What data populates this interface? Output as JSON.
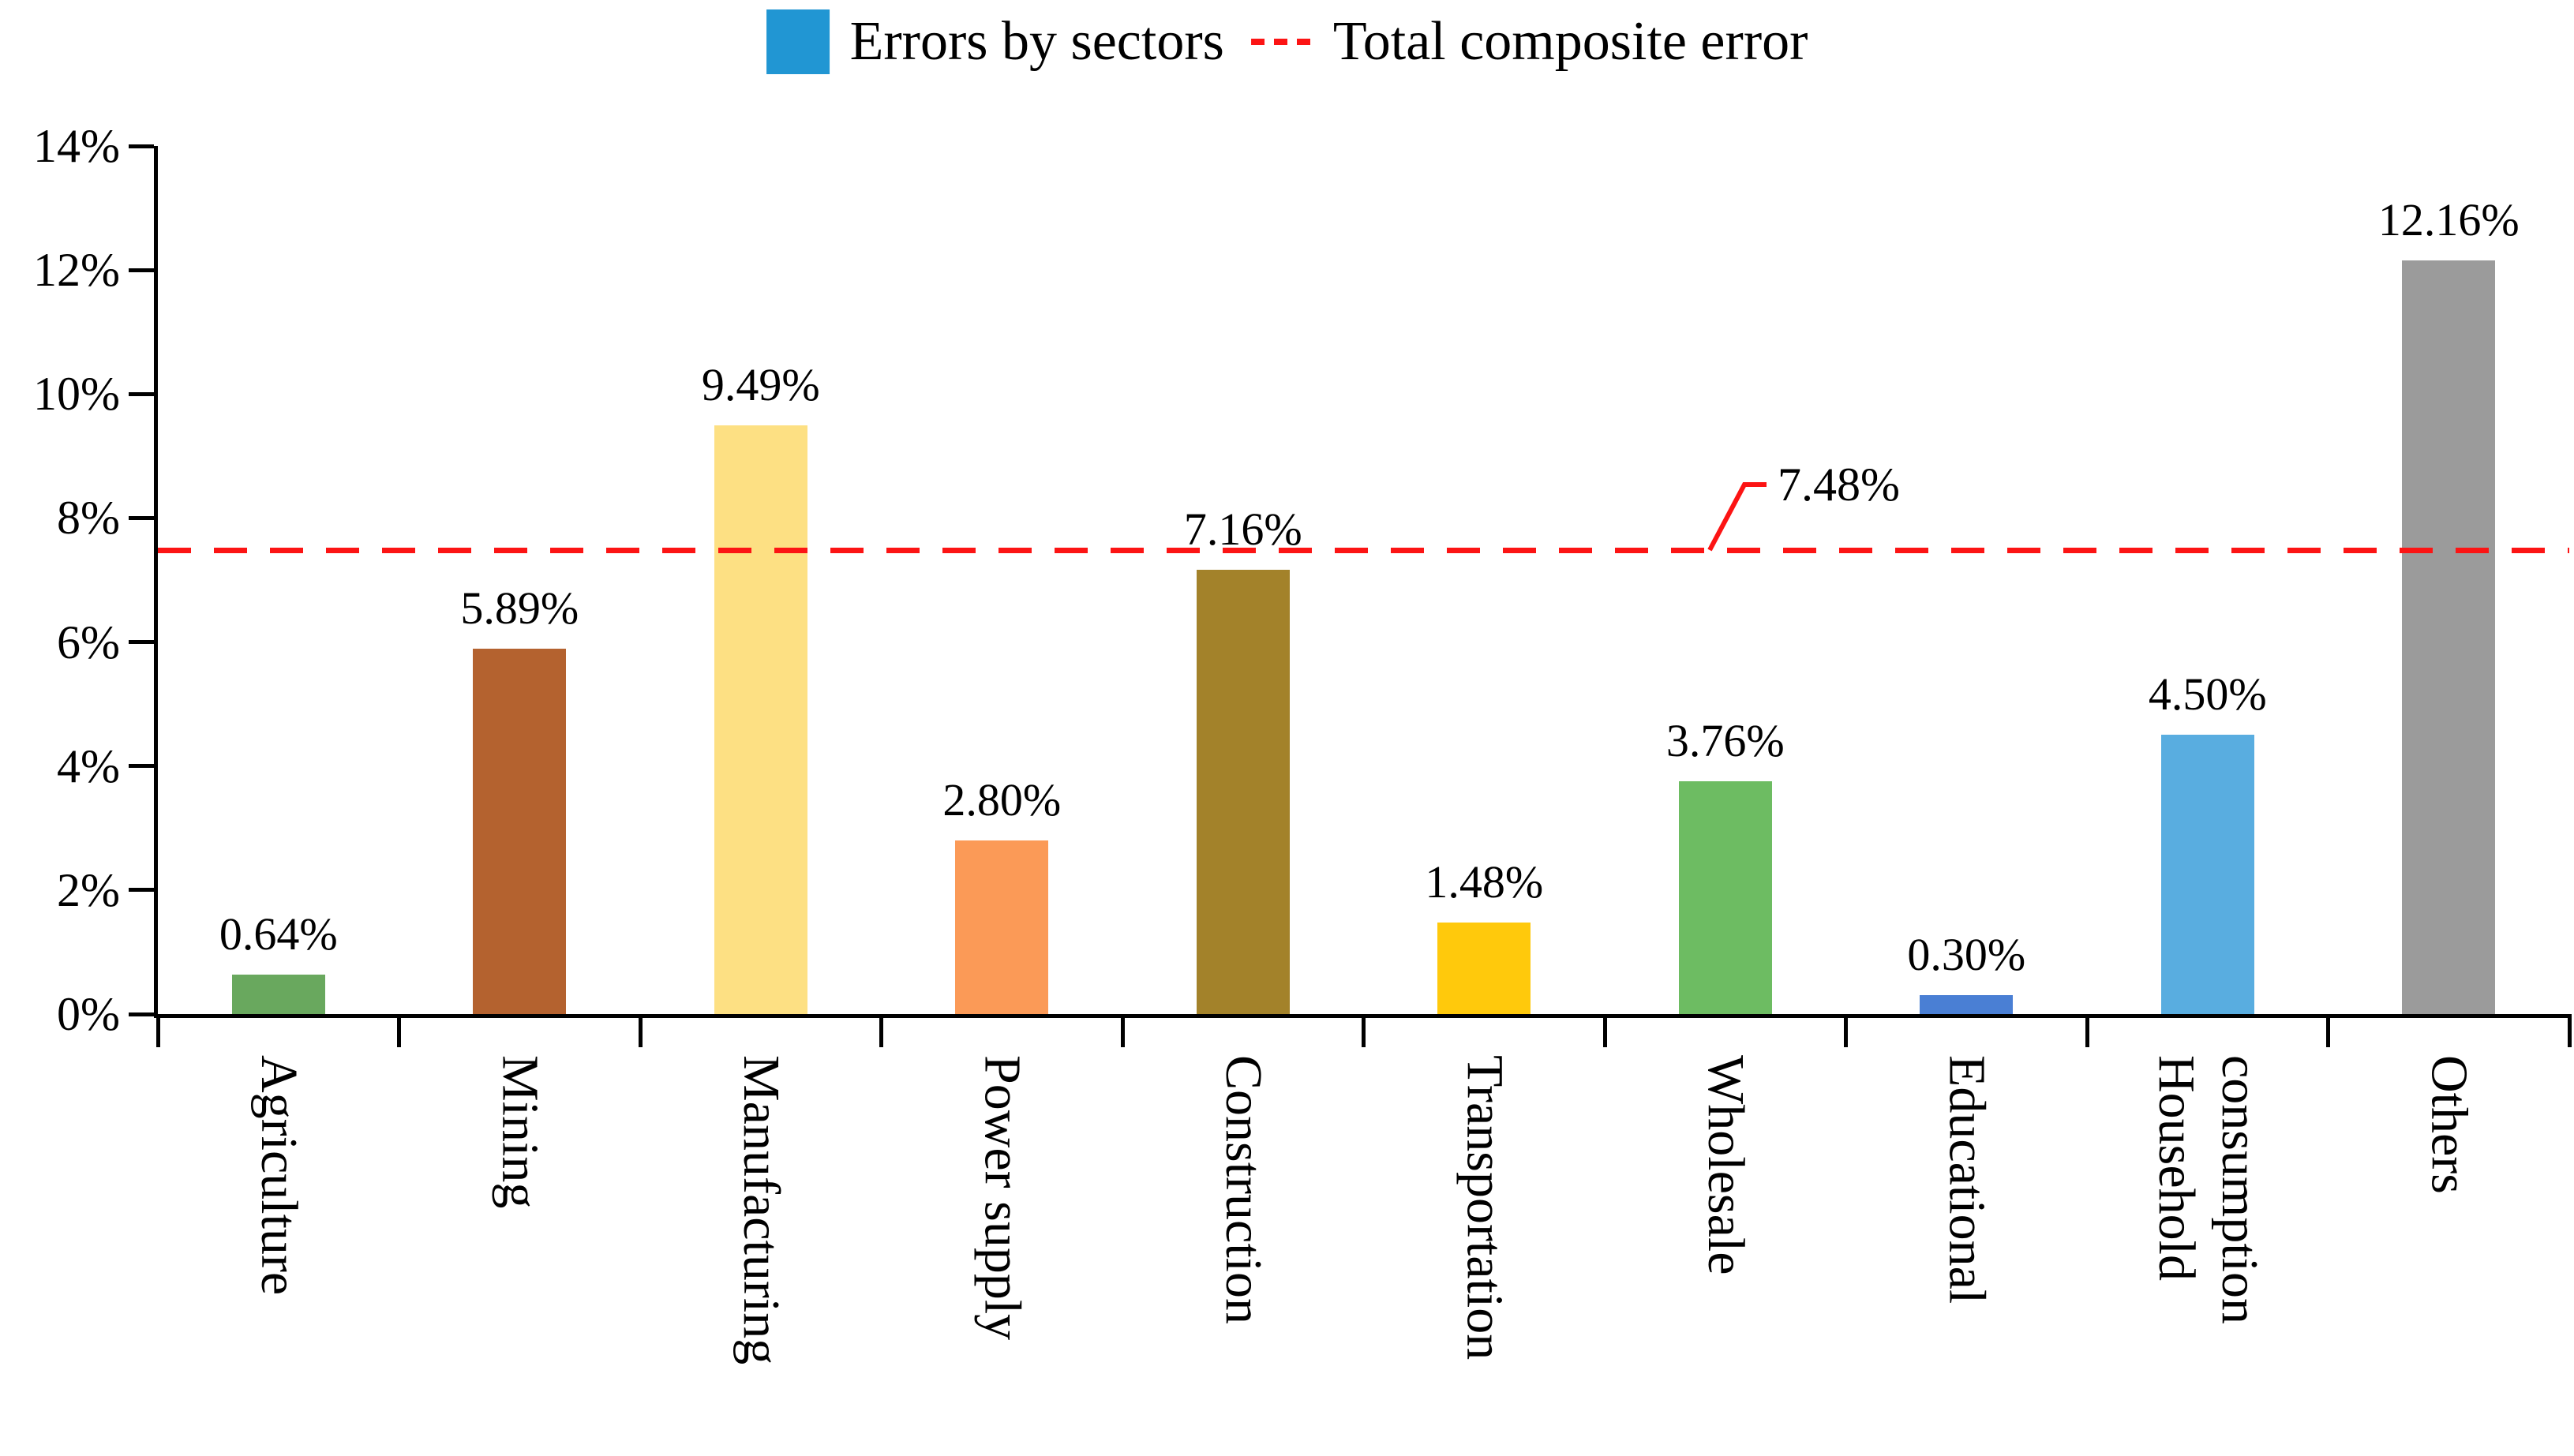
{
  "legend": {
    "bars_label": "Errors by sectors",
    "line_label": "Total composite error"
  },
  "colors": {
    "legend_bar_swatch": "#2196d3",
    "total_line_red": "#fc1414",
    "axis_black": "#000000"
  },
  "chart_data": {
    "type": "bar",
    "title": "",
    "xlabel": "",
    "ylabel": "",
    "categories": [
      "Agriculture",
      "Mining",
      "Manufacturing",
      "Power supply",
      "Construction",
      "Transportation",
      "Wholesale",
      "Educational",
      "Household consumption",
      "Others"
    ],
    "x_label_lines": [
      [
        "Agriculture"
      ],
      [
        "Mining"
      ],
      [
        "Manufacturing"
      ],
      [
        "Power supply"
      ],
      [
        "Construction"
      ],
      [
        "Transportation"
      ],
      [
        "Wholesale"
      ],
      [
        "Educational"
      ],
      [
        "Household",
        "consumption"
      ],
      [
        "Others"
      ]
    ],
    "series": [
      {
        "name": "Errors by sectors",
        "values": [
          0.64,
          5.89,
          9.49,
          2.8,
          7.16,
          1.48,
          3.76,
          0.3,
          4.5,
          12.16
        ],
        "value_labels": [
          "0.64%",
          "5.89%",
          "9.49%",
          "2.80%",
          "7.16%",
          "1.48%",
          "3.76%",
          "0.30%",
          "4.50%",
          "12.16%"
        ],
        "bar_colors": [
          "#69a85e",
          "#b4622f",
          "#fde083",
          "#fb9a57",
          "#a3822a",
          "#ffc90c",
          "#6dbc62",
          "#4a7fd4",
          "#59ade0",
          "#9b9b9b"
        ]
      }
    ],
    "reference_line": {
      "name": "Total composite error",
      "value": 7.48,
      "label": "7.48%",
      "color": "#fc1414",
      "style": "dashed"
    },
    "y_axis": {
      "tick_labels": [
        "0%",
        "2%",
        "4%",
        "6%",
        "8%",
        "10%",
        "12%",
        "14%"
      ],
      "tick_values": [
        0,
        2,
        4,
        6,
        8,
        10,
        12,
        14
      ],
      "min": 0,
      "max": 14
    },
    "grid": "off",
    "legend_position": "top-center"
  }
}
